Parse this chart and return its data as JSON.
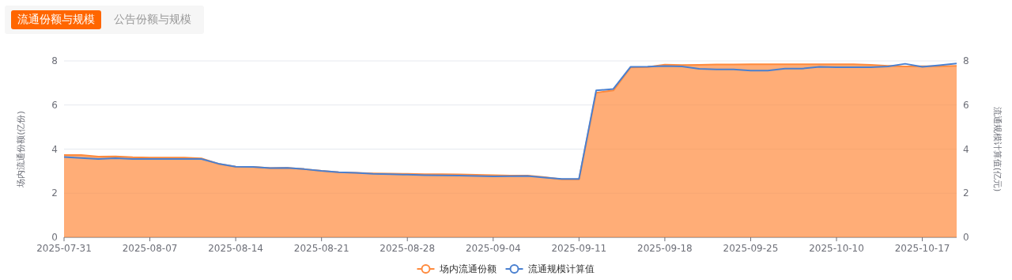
{
  "chart_data": {
    "type": "area",
    "annotations": [
      "流通份额与规模",
      "公告份额与规模"
    ],
    "ylabel": "场内流通份额(亿份)",
    "y2label": "流通规模计算值(亿元)",
    "categories": [
      "2025-07-31",
      null,
      null,
      null,
      null,
      "2025-08-07",
      null,
      null,
      null,
      null,
      "2025-08-14",
      null,
      null,
      null,
      null,
      "2025-08-21",
      null,
      null,
      null,
      null,
      "2025-08-28",
      null,
      null,
      null,
      null,
      "2025-09-04",
      null,
      null,
      null,
      null,
      "2025-09-11",
      null,
      null,
      null,
      null,
      "2025-09-18",
      null,
      null,
      null,
      null,
      "2025-09-25",
      null,
      null,
      null,
      null,
      "2025-10-10",
      null,
      null,
      null,
      null,
      "2025-10-17",
      null,
      null
    ],
    "series": [
      {
        "name": "场内流通份额",
        "type": "area",
        "color": "#ff8a3d",
        "values": [
          3.73,
          3.73,
          3.66,
          3.67,
          3.63,
          3.61,
          3.61,
          3.61,
          3.58,
          3.33,
          3.2,
          3.19,
          3.14,
          3.15,
          3.09,
          3.01,
          2.95,
          2.92,
          2.9,
          2.89,
          2.88,
          2.86,
          2.86,
          2.85,
          2.83,
          2.82,
          2.8,
          2.8,
          2.73,
          2.63,
          2.63,
          6.56,
          6.66,
          7.7,
          7.72,
          7.83,
          7.81,
          7.82,
          7.84,
          7.84,
          7.85,
          7.85,
          7.85,
          7.85,
          7.85,
          7.85,
          7.85,
          7.82,
          7.78,
          7.75,
          7.76,
          7.76,
          7.78
        ]
      },
      {
        "name": "流通规模计算值",
        "type": "line",
        "axis": "y2",
        "color": "#4a80d0",
        "values": [
          3.64,
          3.6,
          3.55,
          3.59,
          3.55,
          3.55,
          3.55,
          3.55,
          3.55,
          3.34,
          3.2,
          3.19,
          3.14,
          3.15,
          3.09,
          3.01,
          2.95,
          2.92,
          2.88,
          2.86,
          2.84,
          2.82,
          2.81,
          2.8,
          2.78,
          2.76,
          2.77,
          2.78,
          2.71,
          2.65,
          2.65,
          6.66,
          6.73,
          7.73,
          7.74,
          7.77,
          7.75,
          7.64,
          7.61,
          7.61,
          7.56,
          7.56,
          7.65,
          7.65,
          7.73,
          7.71,
          7.71,
          7.71,
          7.75,
          7.87,
          7.73,
          7.8,
          7.88
        ]
      }
    ],
    "ylim": [
      0,
      8
    ],
    "yticks": [
      0,
      2,
      4,
      6,
      8
    ],
    "y2lim": [
      0,
      8
    ],
    "y2ticks": [
      0,
      2,
      4,
      6,
      8
    ],
    "grid": "y",
    "legend": "bottom",
    "marker": "none",
    "line_style": "solid"
  }
}
